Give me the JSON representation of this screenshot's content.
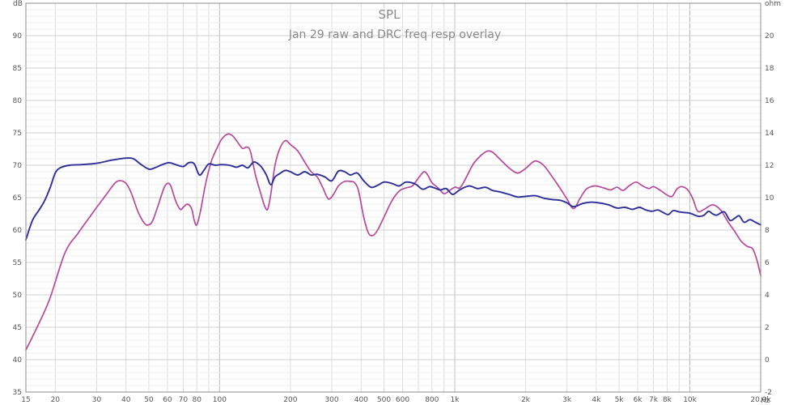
{
  "chart_data": {
    "type": "line",
    "title": "SPL",
    "subtitle": "Jan 29 raw and DRC freq resp overlay",
    "x_scale": "log",
    "xlim": [
      15,
      20000
    ],
    "x_unit": "Hz",
    "y_unit": "dB",
    "y2_unit": "ohm",
    "ylim": [
      35,
      95
    ],
    "y2lim": [
      -2,
      22
    ],
    "grid": true,
    "x_ticks": [
      {
        "value": 15,
        "label": "15"
      },
      {
        "value": 20,
        "label": "20"
      },
      {
        "value": 30,
        "label": "30"
      },
      {
        "value": 40,
        "label": "40"
      },
      {
        "value": 50,
        "label": "50"
      },
      {
        "value": 60,
        "label": "60"
      },
      {
        "value": 70,
        "label": "70"
      },
      {
        "value": 80,
        "label": "80"
      },
      {
        "value": 100,
        "label": "100"
      },
      {
        "value": 200,
        "label": "200"
      },
      {
        "value": 300,
        "label": "300"
      },
      {
        "value": 400,
        "label": "400"
      },
      {
        "value": 500,
        "label": "500"
      },
      {
        "value": 600,
        "label": "600"
      },
      {
        "value": 800,
        "label": "800"
      },
      {
        "value": 1000,
        "label": "1k"
      },
      {
        "value": 2000,
        "label": "2k"
      },
      {
        "value": 3000,
        "label": "3k"
      },
      {
        "value": 4000,
        "label": "4k"
      },
      {
        "value": 5000,
        "label": "5k"
      },
      {
        "value": 6000,
        "label": "6k"
      },
      {
        "value": 7000,
        "label": "7k"
      },
      {
        "value": 8000,
        "label": "8k"
      },
      {
        "value": 10000,
        "label": "10k"
      },
      {
        "value": 20000,
        "label": "20.0k"
      }
    ],
    "y_ticks": [
      {
        "value": 35,
        "label": "35"
      },
      {
        "value": 40,
        "label": "40"
      },
      {
        "value": 45,
        "label": "45"
      },
      {
        "value": 50,
        "label": "50"
      },
      {
        "value": 55,
        "label": "55"
      },
      {
        "value": 60,
        "label": "60"
      },
      {
        "value": 65,
        "label": "65"
      },
      {
        "value": 70,
        "label": "70"
      },
      {
        "value": 75,
        "label": "75"
      },
      {
        "value": 80,
        "label": "80"
      },
      {
        "value": 85,
        "label": "85"
      },
      {
        "value": 90,
        "label": "90"
      }
    ],
    "y2_ticks": [
      {
        "value": -2,
        "label": "-2"
      },
      {
        "value": 0,
        "label": "0"
      },
      {
        "value": 2,
        "label": "2"
      },
      {
        "value": 4,
        "label": "4"
      },
      {
        "value": 6,
        "label": "6"
      },
      {
        "value": 8,
        "label": "8"
      },
      {
        "value": 10,
        "label": "10"
      },
      {
        "value": 12,
        "label": "12"
      },
      {
        "value": 14,
        "label": "14"
      },
      {
        "value": 16,
        "label": "16"
      },
      {
        "value": 18,
        "label": "18"
      },
      {
        "value": 20,
        "label": "20"
      }
    ],
    "series": [
      {
        "color": "#b5489f",
        "points": [
          [
            15,
            41.5
          ],
          [
            17,
            45.5
          ],
          [
            19,
            49.5
          ],
          [
            22,
            56.5
          ],
          [
            25,
            59.5
          ],
          [
            28,
            62
          ],
          [
            30,
            63.5
          ],
          [
            33,
            65.5
          ],
          [
            36,
            67.3
          ],
          [
            38,
            67.6
          ],
          [
            40,
            67.2
          ],
          [
            42,
            65.8
          ],
          [
            45,
            62.8
          ],
          [
            48,
            61
          ],
          [
            50,
            60.8
          ],
          [
            52,
            61.5
          ],
          [
            55,
            64
          ],
          [
            58,
            66.5
          ],
          [
            60,
            67.2
          ],
          [
            62,
            66.8
          ],
          [
            65,
            64.5
          ],
          [
            68,
            63.2
          ],
          [
            70,
            63.5
          ],
          [
            73,
            64
          ],
          [
            76,
            63.3
          ],
          [
            78,
            61.5
          ],
          [
            80,
            60.8
          ],
          [
            83,
            63
          ],
          [
            87,
            67
          ],
          [
            92,
            70.5
          ],
          [
            97,
            72.5
          ],
          [
            102,
            74
          ],
          [
            108,
            74.8
          ],
          [
            113,
            74.6
          ],
          [
            118,
            73.8
          ],
          [
            125,
            72.6
          ],
          [
            130,
            72.8
          ],
          [
            135,
            72.2
          ],
          [
            142,
            68.5
          ],
          [
            150,
            65.5
          ],
          [
            155,
            63.8
          ],
          [
            160,
            63.2
          ],
          [
            165,
            65.5
          ],
          [
            172,
            70
          ],
          [
            180,
            72.5
          ],
          [
            190,
            73.8
          ],
          [
            200,
            73.2
          ],
          [
            215,
            72.2
          ],
          [
            230,
            70.5
          ],
          [
            245,
            69
          ],
          [
            260,
            68.2
          ],
          [
            275,
            66.5
          ],
          [
            290,
            64.8
          ],
          [
            305,
            65.5
          ],
          [
            320,
            66.8
          ],
          [
            340,
            67.5
          ],
          [
            360,
            67.5
          ],
          [
            375,
            67.3
          ],
          [
            390,
            66
          ],
          [
            410,
            62
          ],
          [
            430,
            59.5
          ],
          [
            450,
            59.2
          ],
          [
            470,
            60
          ],
          [
            500,
            62
          ],
          [
            540,
            64.5
          ],
          [
            580,
            66
          ],
          [
            620,
            66.5
          ],
          [
            660,
            66.8
          ],
          [
            700,
            68
          ],
          [
            740,
            69
          ],
          [
            770,
            68.4
          ],
          [
            800,
            67.3
          ],
          [
            850,
            66.5
          ],
          [
            900,
            65.6
          ],
          [
            950,
            66.1
          ],
          [
            1000,
            66.6
          ],
          [
            1050,
            66.5
          ],
          [
            1100,
            67.6
          ],
          [
            1200,
            70.2
          ],
          [
            1300,
            71.6
          ],
          [
            1380,
            72.2
          ],
          [
            1450,
            72
          ],
          [
            1550,
            71
          ],
          [
            1700,
            69.6
          ],
          [
            1850,
            68.8
          ],
          [
            2000,
            69.5
          ],
          [
            2150,
            70.5
          ],
          [
            2250,
            70.6
          ],
          [
            2400,
            69.9
          ],
          [
            2600,
            68.2
          ],
          [
            2800,
            66.5
          ],
          [
            3000,
            64.8
          ],
          [
            3200,
            63.3
          ],
          [
            3400,
            64.8
          ],
          [
            3600,
            66.2
          ],
          [
            3800,
            66.7
          ],
          [
            4000,
            66.8
          ],
          [
            4300,
            66.5
          ],
          [
            4600,
            66.2
          ],
          [
            4900,
            66.6
          ],
          [
            5200,
            66.1
          ],
          [
            5500,
            66.8
          ],
          [
            5900,
            67.4
          ],
          [
            6300,
            66.8
          ],
          [
            6700,
            66.4
          ],
          [
            7000,
            66.7
          ],
          [
            7500,
            66.1
          ],
          [
            8000,
            65.4
          ],
          [
            8400,
            65.2
          ],
          [
            8800,
            66.3
          ],
          [
            9200,
            66.7
          ],
          [
            9800,
            66.2
          ],
          [
            10300,
            64.8
          ],
          [
            10800,
            62.9
          ],
          [
            11500,
            63.2
          ],
          [
            12500,
            63.9
          ],
          [
            13500,
            63.1
          ],
          [
            14500,
            61.3
          ],
          [
            15500,
            59.8
          ],
          [
            16500,
            58.3
          ],
          [
            17500,
            57.5
          ],
          [
            18500,
            57.1
          ],
          [
            19300,
            55.3
          ],
          [
            20000,
            53
          ]
        ]
      },
      {
        "color": "#2d2f9b",
        "points": [
          [
            15,
            58.5
          ],
          [
            16,
            61.5
          ],
          [
            17,
            63
          ],
          [
            18,
            64.5
          ],
          [
            19,
            66.5
          ],
          [
            20,
            68.8
          ],
          [
            21,
            69.6
          ],
          [
            23,
            70
          ],
          [
            26,
            70.1
          ],
          [
            30,
            70.3
          ],
          [
            35,
            70.8
          ],
          [
            40,
            71.1
          ],
          [
            43,
            71
          ],
          [
            46,
            70.2
          ],
          [
            50,
            69.4
          ],
          [
            53,
            69.6
          ],
          [
            57,
            70.1
          ],
          [
            61,
            70.4
          ],
          [
            65,
            70.1
          ],
          [
            70,
            69.8
          ],
          [
            74,
            70.4
          ],
          [
            78,
            70.2
          ],
          [
            82,
            68.5
          ],
          [
            86,
            69.3
          ],
          [
            90,
            70.2
          ],
          [
            96,
            70
          ],
          [
            102,
            70.1
          ],
          [
            110,
            70
          ],
          [
            118,
            69.7
          ],
          [
            125,
            70
          ],
          [
            132,
            69.6
          ],
          [
            140,
            70.5
          ],
          [
            150,
            69.8
          ],
          [
            158,
            68.5
          ],
          [
            165,
            67
          ],
          [
            172,
            68.2
          ],
          [
            180,
            68.7
          ],
          [
            190,
            69.2
          ],
          [
            200,
            69
          ],
          [
            215,
            68.5
          ],
          [
            230,
            69
          ],
          [
            245,
            68.5
          ],
          [
            260,
            68.6
          ],
          [
            280,
            68.2
          ],
          [
            300,
            67.6
          ],
          [
            320,
            69.1
          ],
          [
            340,
            69
          ],
          [
            360,
            68.5
          ],
          [
            385,
            68.8
          ],
          [
            410,
            67.6
          ],
          [
            440,
            66.6
          ],
          [
            470,
            66.9
          ],
          [
            500,
            67.4
          ],
          [
            540,
            67.2
          ],
          [
            580,
            66.8
          ],
          [
            620,
            67.4
          ],
          [
            680,
            67.1
          ],
          [
            730,
            66.3
          ],
          [
            780,
            66.7
          ],
          [
            820,
            66.5
          ],
          [
            870,
            66.2
          ],
          [
            920,
            66.4
          ],
          [
            980,
            65.5
          ],
          [
            1050,
            66.2
          ],
          [
            1150,
            66.8
          ],
          [
            1250,
            66.4
          ],
          [
            1350,
            66.6
          ],
          [
            1450,
            66.1
          ],
          [
            1550,
            65.9
          ],
          [
            1700,
            65.5
          ],
          [
            1850,
            65.1
          ],
          [
            2000,
            65.2
          ],
          [
            2200,
            65.3
          ],
          [
            2400,
            64.9
          ],
          [
            2600,
            64.7
          ],
          [
            2800,
            64.6
          ],
          [
            3000,
            64.2
          ],
          [
            3200,
            63.6
          ],
          [
            3500,
            64.1
          ],
          [
            3800,
            64.3
          ],
          [
            4100,
            64.2
          ],
          [
            4500,
            63.9
          ],
          [
            4900,
            63.4
          ],
          [
            5300,
            63.5
          ],
          [
            5700,
            63.2
          ],
          [
            6100,
            63.5
          ],
          [
            6500,
            63.1
          ],
          [
            6900,
            62.9
          ],
          [
            7300,
            63.1
          ],
          [
            7700,
            62.7
          ],
          [
            8100,
            62.4
          ],
          [
            8500,
            63
          ],
          [
            9000,
            62.8
          ],
          [
            9500,
            62.7
          ],
          [
            10000,
            62.6
          ],
          [
            10500,
            62.3
          ],
          [
            11000,
            62.1
          ],
          [
            11500,
            62.3
          ],
          [
            12000,
            62.9
          ],
          [
            12500,
            62.5
          ],
          [
            13000,
            62.3
          ],
          [
            14000,
            62.8
          ],
          [
            14800,
            61.5
          ],
          [
            15500,
            61.8
          ],
          [
            16200,
            62.2
          ],
          [
            17000,
            61.2
          ],
          [
            18000,
            61.6
          ],
          [
            19000,
            61.2
          ],
          [
            20000,
            60.8
          ]
        ]
      }
    ]
  }
}
